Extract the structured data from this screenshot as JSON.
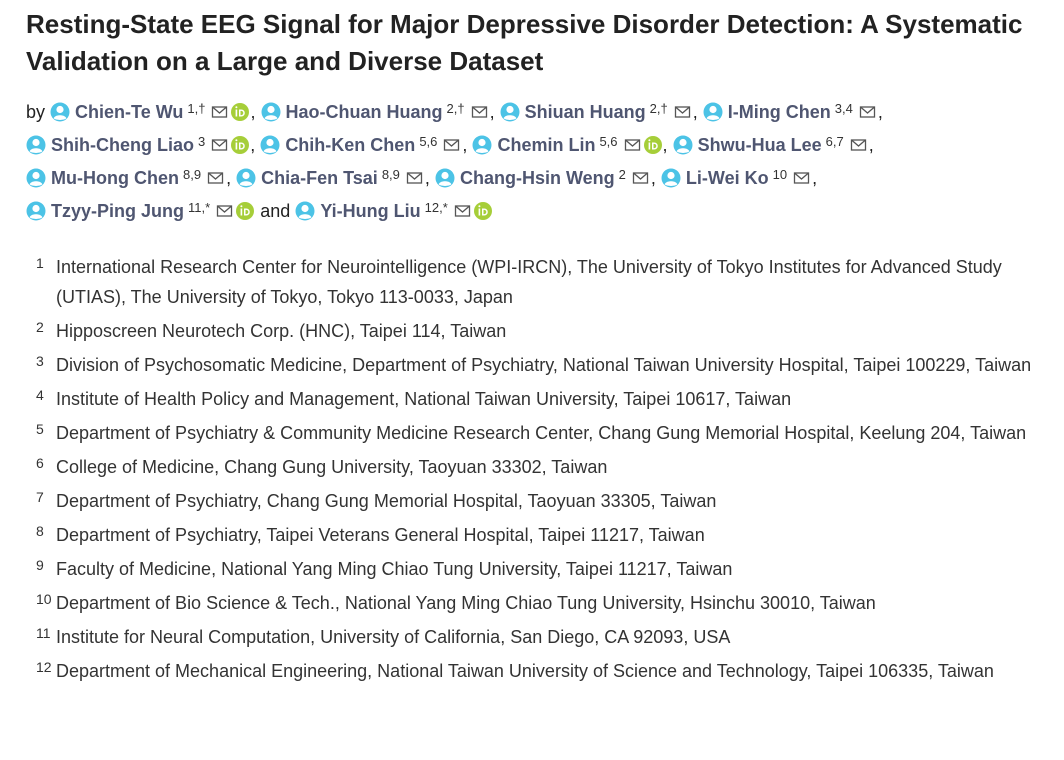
{
  "title": "Resting-State EEG Signal for Major Depressive Disorder Detection: A Systematic Validation on a Large and Diverse Dataset",
  "by": "by",
  "and": "and",
  "separator": ",",
  "authors": [
    {
      "name": "Chien-Te Wu",
      "sup": "1,†",
      "orcid": true
    },
    {
      "name": "Hao-Chuan Huang",
      "sup": "2,†",
      "orcid": false
    },
    {
      "name": "Shiuan Huang",
      "sup": "2,†",
      "orcid": false
    },
    {
      "name": "I-Ming Chen",
      "sup": "3,4",
      "orcid": false
    },
    {
      "name": "Shih-Cheng Liao",
      "sup": "3",
      "orcid": true
    },
    {
      "name": "Chih-Ken Chen",
      "sup": "5,6",
      "orcid": false
    },
    {
      "name": "Chemin Lin",
      "sup": "5,6",
      "orcid": true
    },
    {
      "name": "Shwu-Hua Lee",
      "sup": "6,7",
      "orcid": false
    },
    {
      "name": "Mu-Hong Chen",
      "sup": "8,9",
      "orcid": false
    },
    {
      "name": "Chia-Fen Tsai",
      "sup": "8,9",
      "orcid": false
    },
    {
      "name": "Chang-Hsin Weng",
      "sup": "2",
      "orcid": false
    },
    {
      "name": "Li-Wei Ko",
      "sup": "10",
      "orcid": false
    },
    {
      "name": "Tzyy-Ping Jung",
      "sup": "11,*",
      "orcid": true
    },
    {
      "name": "Yi-Hung Liu",
      "sup": "12,*",
      "orcid": true
    }
  ],
  "affiliations": [
    {
      "num": "1",
      "text": "International Research Center for Neurointelligence (WPI-IRCN), The University of Tokyo Institutes for Advanced Study (UTIAS), The University of Tokyo, Tokyo 113-0033, Japan"
    },
    {
      "num": "2",
      "text": "Hipposcreen Neurotech Corp. (HNC), Taipei 114, Taiwan"
    },
    {
      "num": "3",
      "text": "Division of Psychosomatic Medicine, Department of Psychiatry, National Taiwan University Hospital, Taipei 100229, Taiwan"
    },
    {
      "num": "4",
      "text": "Institute of Health Policy and Management, National Taiwan University, Taipei 10617, Taiwan"
    },
    {
      "num": "5",
      "text": "Department of Psychiatry & Community Medicine Research Center, Chang Gung Memorial Hospital, Keelung 204, Taiwan"
    },
    {
      "num": "6",
      "text": "College of Medicine, Chang Gung University, Taoyuan 33302, Taiwan"
    },
    {
      "num": "7",
      "text": "Department of Psychiatry, Chang Gung Memorial Hospital, Taoyuan 33305, Taiwan"
    },
    {
      "num": "8",
      "text": "Department of Psychiatry, Taipei Veterans General Hospital, Taipei 11217, Taiwan"
    },
    {
      "num": "9",
      "text": "Faculty of Medicine, National Yang Ming Chiao Tung University, Taipei 11217, Taiwan"
    },
    {
      "num": "10",
      "text": "Department of Bio Science & Tech., National Yang Ming Chiao Tung University, Hsinchu 30010, Taiwan"
    },
    {
      "num": "11",
      "text": "Institute for Neural Computation, University of California, San Diego, CA 92093, USA"
    },
    {
      "num": "12",
      "text": "Department of Mechanical Engineering, National Taiwan University of Science and Technology, Taipei 106335, Taiwan"
    }
  ]
}
